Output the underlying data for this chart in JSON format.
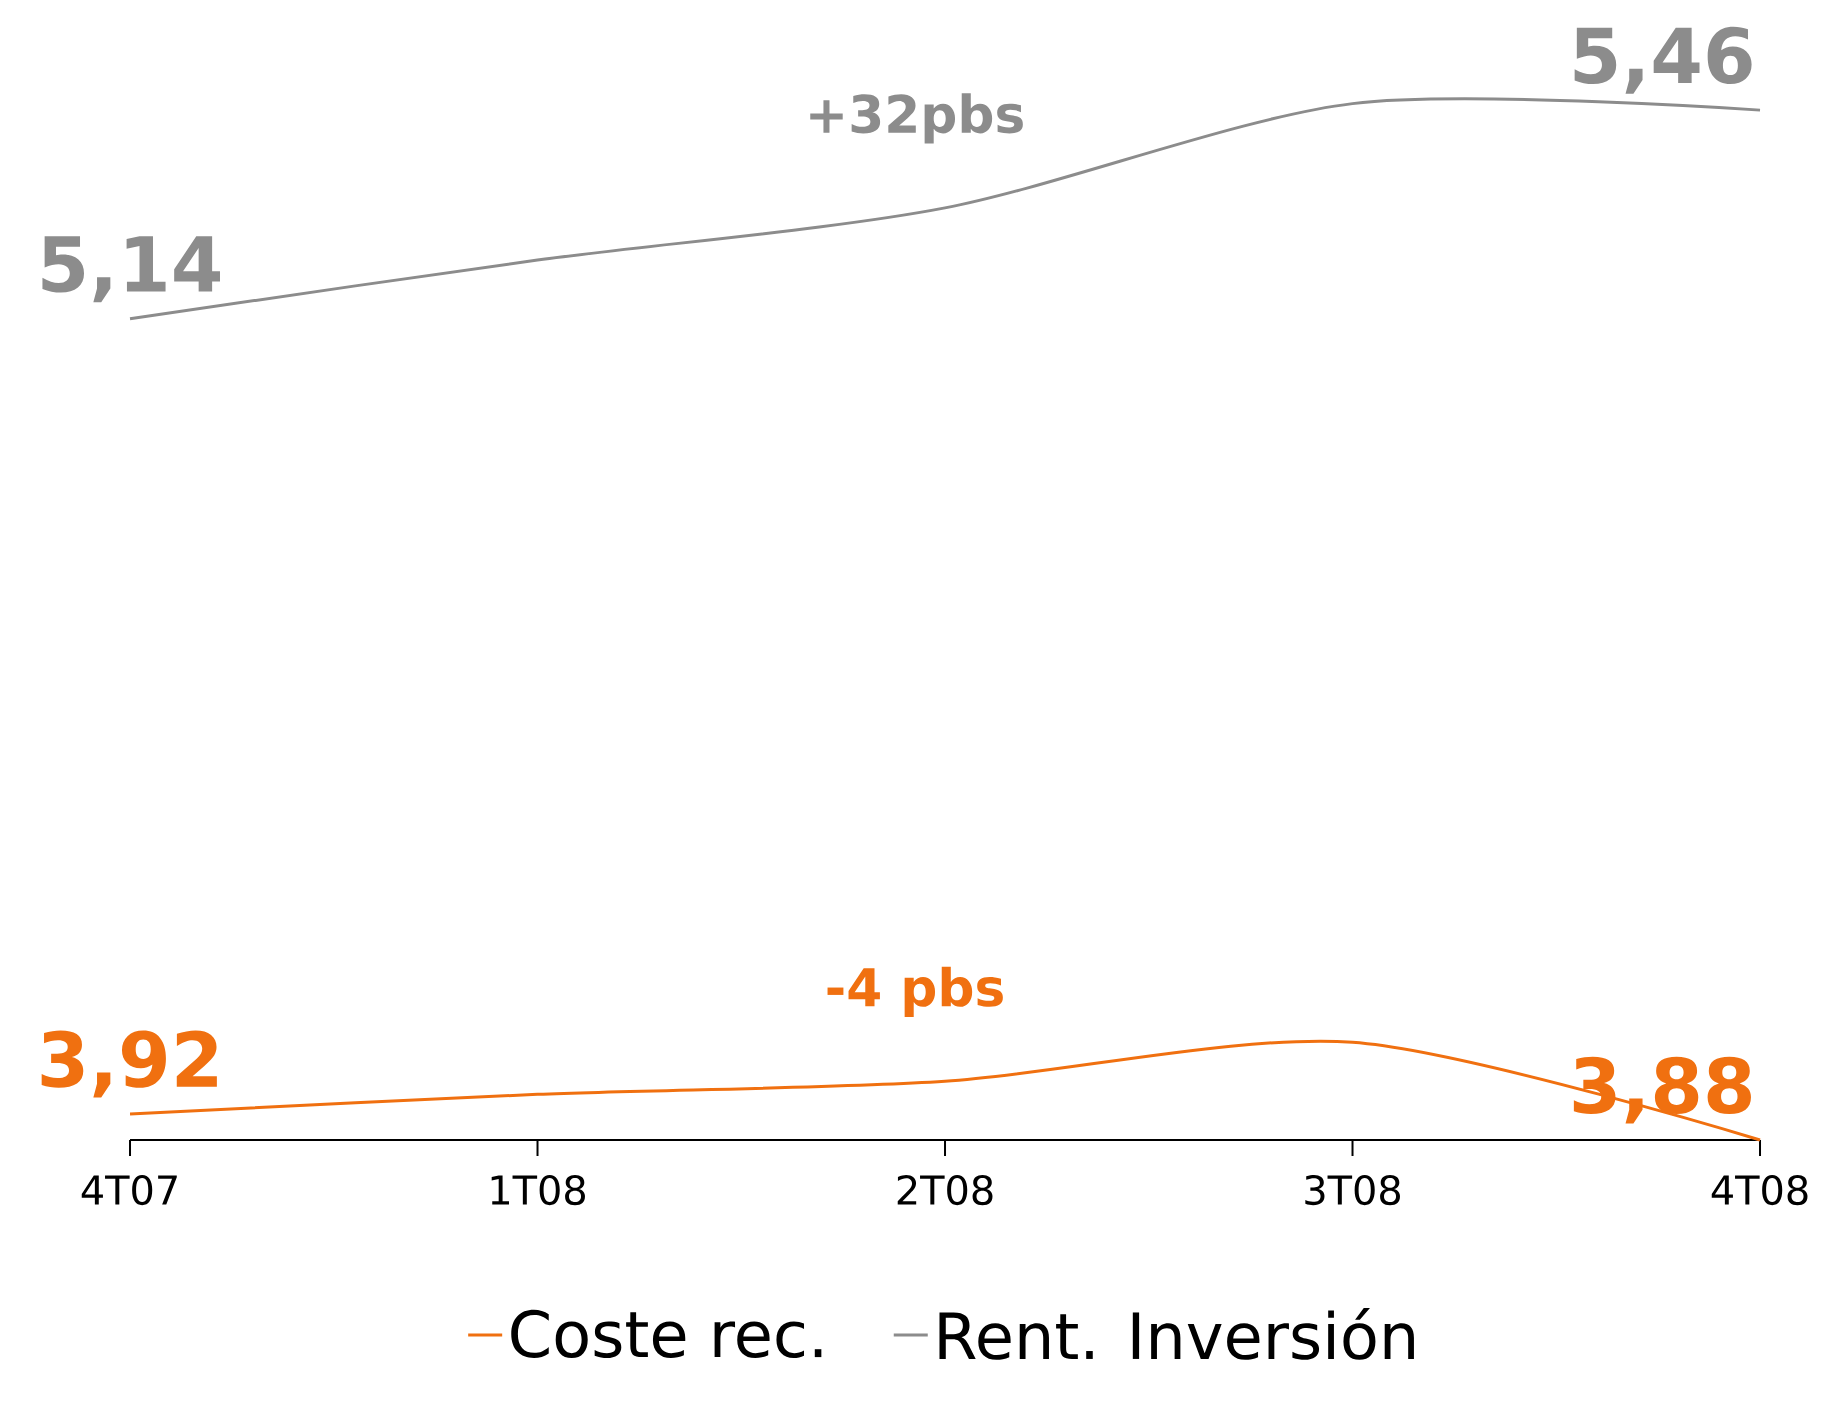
{
  "chart_data": {
    "type": "line",
    "categories": [
      "4T07",
      "1T08",
      "2T08",
      "3T08",
      "4T08"
    ],
    "series": [
      {
        "name": "Coste rec.",
        "color": "#f07010",
        "values": [
          3.92,
          3.95,
          3.97,
          4.03,
          3.88
        ],
        "value_labels": [
          "3,92",
          null,
          null,
          null,
          "3,88"
        ]
      },
      {
        "name": "Rent. Inversión",
        "color": "#8c8c8c",
        "values": [
          5.14,
          5.23,
          5.31,
          5.47,
          5.46
        ],
        "value_labels": [
          "5,14",
          null,
          null,
          null,
          "5,46"
        ]
      }
    ],
    "tick_labels": "x",
    "grid": false,
    "legend": "bottom",
    "annotations": [
      "-4 pbs",
      "+32pbs"
    ]
  }
}
